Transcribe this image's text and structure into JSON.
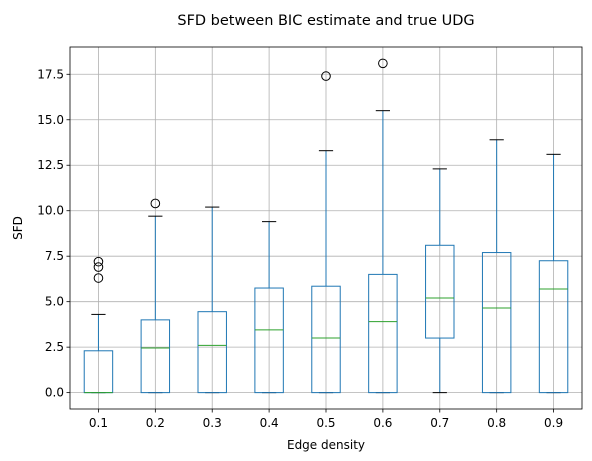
{
  "chart_data": {
    "type": "boxplot",
    "title": "SFD between BIC estimate and true UDG",
    "xlabel": "Edge density",
    "ylabel": "SFD",
    "ylim": [
      -0.9,
      19.0
    ],
    "yticks": [
      0.0,
      2.5,
      5.0,
      7.5,
      10.0,
      12.5,
      15.0,
      17.5
    ],
    "ytick_labels": [
      "0.0",
      "2.5",
      "5.0",
      "7.5",
      "10.0",
      "12.5",
      "15.0",
      "17.5"
    ],
    "grid": true,
    "categories": [
      "0.1",
      "0.2",
      "0.3",
      "0.4",
      "0.5",
      "0.6",
      "0.7",
      "0.8",
      "0.9"
    ],
    "boxes": [
      {
        "whisker_low": 0,
        "q1": 0,
        "median": 0.0,
        "q3": 2.3,
        "whisker_high": 4.3,
        "fliers": [
          6.3,
          6.9,
          7.2
        ]
      },
      {
        "whisker_low": 0,
        "q1": 0,
        "median": 2.45,
        "q3": 4.0,
        "whisker_high": 9.7,
        "fliers": [
          10.4
        ]
      },
      {
        "whisker_low": 0,
        "q1": 0,
        "median": 2.6,
        "q3": 4.45,
        "whisker_high": 10.2,
        "fliers": []
      },
      {
        "whisker_low": 0,
        "q1": 0,
        "median": 3.45,
        "q3": 5.75,
        "whisker_high": 9.4,
        "fliers": []
      },
      {
        "whisker_low": 0,
        "q1": 0,
        "median": 3.0,
        "q3": 5.85,
        "whisker_high": 13.3,
        "fliers": [
          17.4
        ]
      },
      {
        "whisker_low": 0,
        "q1": 0,
        "median": 3.9,
        "q3": 6.5,
        "whisker_high": 15.5,
        "fliers": [
          18.1
        ]
      },
      {
        "whisker_low": 0,
        "q1": 3.0,
        "median": 5.2,
        "q3": 8.1,
        "whisker_high": 12.3,
        "fliers": []
      },
      {
        "whisker_low": 0,
        "q1": 0,
        "median": 4.65,
        "q3": 7.7,
        "whisker_high": 13.9,
        "fliers": []
      },
      {
        "whisker_low": 0,
        "q1": 0,
        "median": 5.7,
        "q3": 7.25,
        "whisker_high": 13.1,
        "fliers": []
      }
    ]
  }
}
